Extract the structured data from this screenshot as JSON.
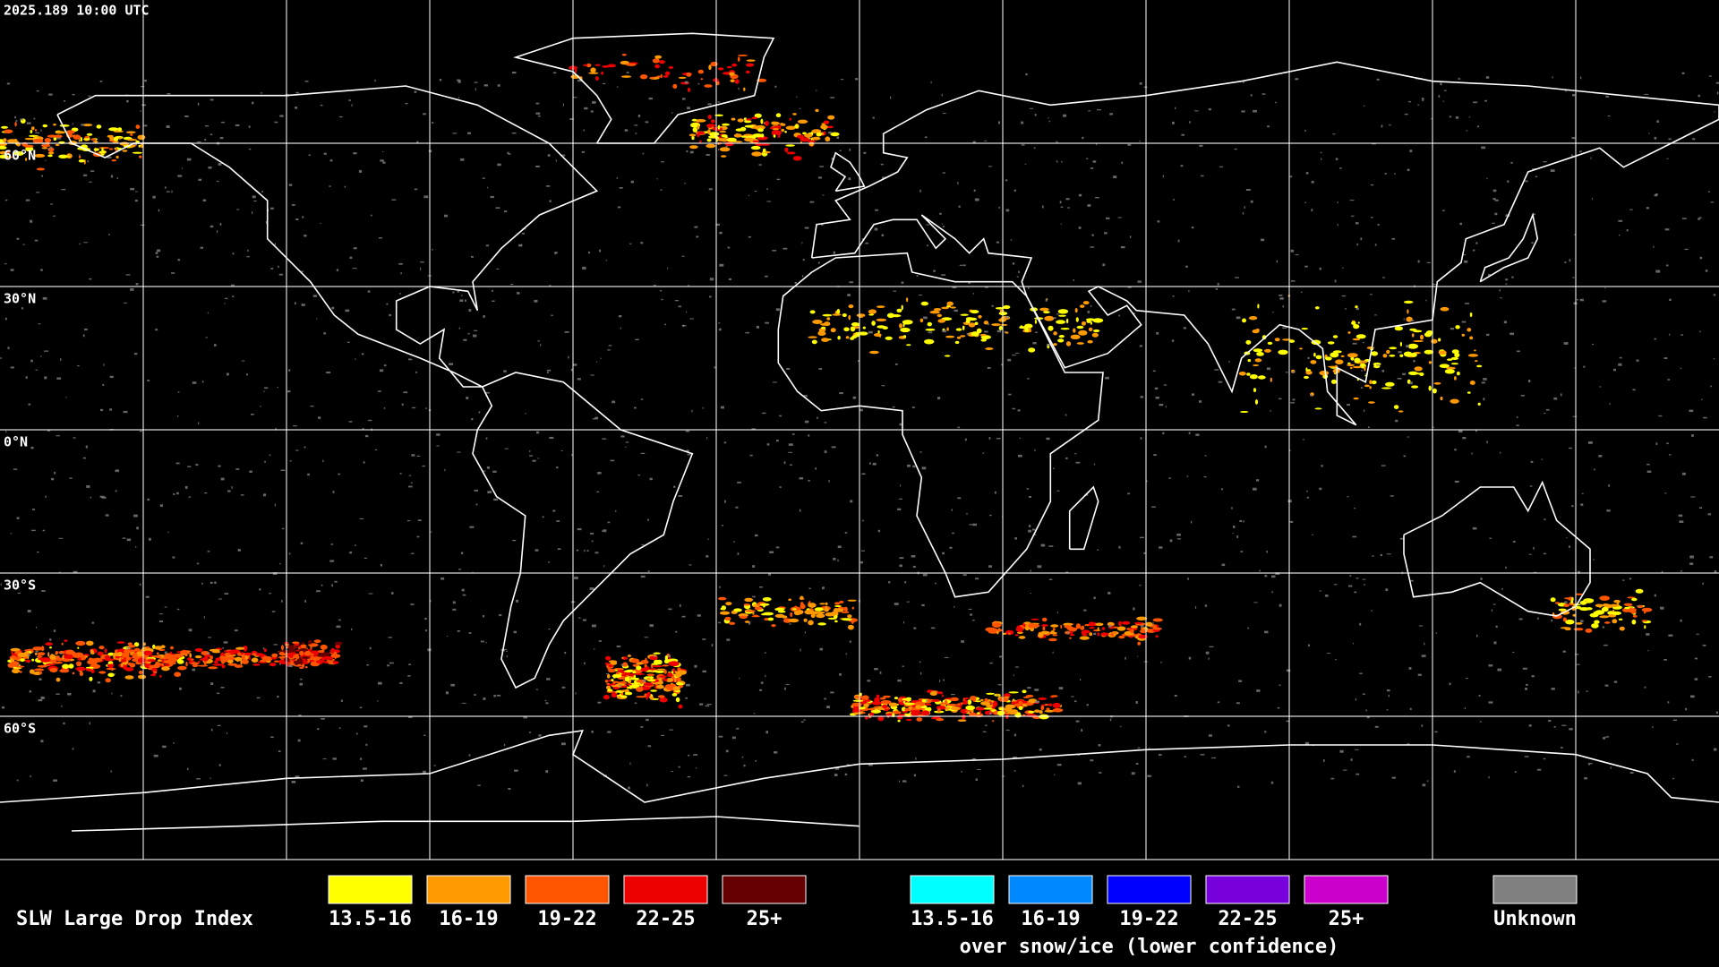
{
  "timestamp": "2025.189 10:00 UTC",
  "lat_labels": [
    "60°N",
    "30°N",
    "0°N",
    "30°S",
    "60°S"
  ],
  "legend": {
    "title": "SLW Large Drop Index",
    "groups": [
      {
        "items": [
          {
            "label": "13.5-16",
            "color": "#ffff00"
          },
          {
            "label": "16-19",
            "color": "#ff9900"
          },
          {
            "label": "19-22",
            "color": "#ff5500"
          },
          {
            "label": "22-25",
            "color": "#ee0000"
          },
          {
            "label": "25+",
            "color": "#660000"
          }
        ]
      },
      {
        "items": [
          {
            "label": "13.5-16",
            "color": "#00ffff"
          },
          {
            "label": "16-19",
            "color": "#0088ff"
          },
          {
            "label": "19-22",
            "color": "#0000ff"
          },
          {
            "label": "22-25",
            "color": "#7700dd"
          },
          {
            "label": "25+",
            "color": "#cc00cc"
          }
        ],
        "note": "over snow/ice (lower confidence)"
      }
    ],
    "unknown": {
      "label": "Unknown",
      "color": "#808080"
    }
  }
}
